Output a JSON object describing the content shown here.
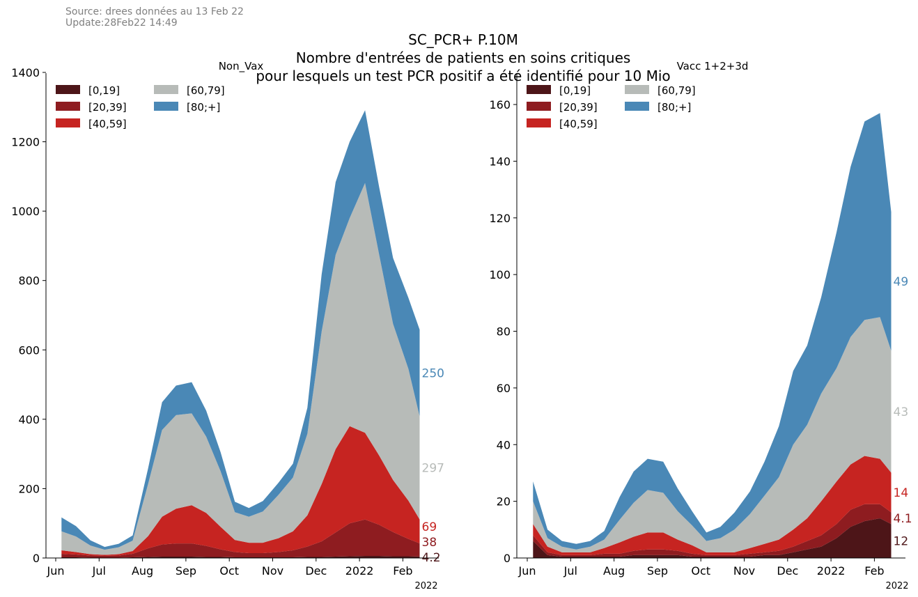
{
  "source": {
    "line1": "Source: drees données au 13 Feb 22",
    "line2": "Update:28Feb22 14:49"
  },
  "title": {
    "line1": "SC_PCR+ P.10M",
    "line2": "Nombre d'entrées de patients en soins critiques",
    "line3": "pour lesquels un test PCR positif a été identifié pour 10 Mio"
  },
  "chart_data": [
    {
      "type": "area",
      "stacked": true,
      "title": "Non_Vax",
      "x_tick_labels": [
        "Jun",
        "Jul",
        "Aug",
        "Sep",
        "Oct",
        "Nov",
        "Dec",
        "2022",
        "Feb"
      ],
      "x_axis_year_label": "2022",
      "ylim": [
        0,
        1430
      ],
      "y_ticks": [
        0,
        200,
        400,
        600,
        800,
        1000,
        1200,
        1400
      ],
      "grid": false,
      "legend_position": "top-left",
      "x": [
        "2021-06-05",
        "2021-06-15",
        "2021-06-25",
        "2021-07-05",
        "2021-07-15",
        "2021-07-25",
        "2021-08-05",
        "2021-08-15",
        "2021-08-25",
        "2021-09-05",
        "2021-09-15",
        "2021-09-25",
        "2021-10-05",
        "2021-10-15",
        "2021-10-25",
        "2021-11-05",
        "2021-11-15",
        "2021-11-25",
        "2021-12-05",
        "2021-12-15",
        "2021-12-25",
        "2022-01-05",
        "2022-01-15",
        "2022-01-25",
        "2022-02-05",
        "2022-02-13"
      ],
      "series": [
        {
          "name": "[0,19]",
          "color": "#4d1518",
          "end_label": "4.2",
          "values": [
            2,
            2,
            1,
            1,
            1,
            2,
            3,
            4,
            4,
            4,
            3,
            3,
            2,
            2,
            2,
            2,
            2,
            3,
            3,
            4,
            5,
            6,
            6,
            5,
            5,
            4.2
          ]
        },
        {
          "name": "[20,39]",
          "color": "#8e1c20",
          "end_label": "38",
          "values": [
            10,
            8,
            6,
            5,
            6,
            10,
            25,
            35,
            38,
            38,
            32,
            22,
            15,
            12,
            12,
            15,
            20,
            30,
            45,
            70,
            95,
            105,
            90,
            70,
            50,
            38
          ]
        },
        {
          "name": "[40,59]",
          "color": "#c62421",
          "end_label": "69",
          "values": [
            10,
            7,
            4,
            3,
            4,
            8,
            35,
            80,
            100,
            110,
            95,
            65,
            35,
            30,
            30,
            40,
            55,
            90,
            165,
            240,
            280,
            250,
            200,
            150,
            110,
            69
          ]
        },
        {
          "name": "[60,79]",
          "color": "#b7bbb8",
          "end_label": "297",
          "values": [
            55,
            45,
            25,
            15,
            20,
            30,
            150,
            250,
            270,
            265,
            220,
            160,
            80,
            75,
            90,
            125,
            155,
            235,
            440,
            560,
            600,
            720,
            580,
            450,
            380,
            297
          ]
        },
        {
          "name": "[80;+]",
          "color": "#4a88b6",
          "end_label": "250",
          "values": [
            40,
            30,
            15,
            8,
            10,
            15,
            45,
            80,
            85,
            90,
            75,
            55,
            30,
            25,
            30,
            35,
            40,
            75,
            165,
            210,
            220,
            210,
            195,
            190,
            205,
            250
          ]
        }
      ]
    },
    {
      "type": "area",
      "stacked": true,
      "title": "Vacc 1+2+3d",
      "x_tick_labels": [
        "Jun",
        "Jul",
        "Aug",
        "Sep",
        "Oct",
        "Nov",
        "Dec",
        "2022",
        "Feb"
      ],
      "x_axis_year_label": "2022",
      "ylim": [
        0,
        175
      ],
      "y_ticks": [
        0,
        20,
        40,
        60,
        80,
        100,
        120,
        140,
        160
      ],
      "grid": false,
      "legend_position": "top-left",
      "x": [
        "2021-06-05",
        "2021-06-15",
        "2021-06-25",
        "2021-07-05",
        "2021-07-15",
        "2021-07-25",
        "2021-08-05",
        "2021-08-15",
        "2021-08-25",
        "2021-09-05",
        "2021-09-15",
        "2021-09-25",
        "2021-10-05",
        "2021-10-15",
        "2021-10-25",
        "2021-11-05",
        "2021-11-15",
        "2021-11-25",
        "2021-12-05",
        "2021-12-15",
        "2021-12-25",
        "2022-01-05",
        "2022-01-15",
        "2022-01-25",
        "2022-02-05",
        "2022-02-13"
      ],
      "series": [
        {
          "name": "[0,19]",
          "color": "#4d1518",
          "end_label": "12",
          "values": [
            6,
            1,
            0.5,
            0.5,
            0.5,
            0.5,
            0.5,
            1,
            1,
            1,
            1,
            0.5,
            0.5,
            0.5,
            0.5,
            0.5,
            1,
            1,
            2,
            3,
            4,
            7,
            11,
            13,
            14,
            12
          ]
        },
        {
          "name": "[20,39]",
          "color": "#8e1c20",
          "end_label": "4.1",
          "values": [
            2,
            1,
            0.5,
            0.5,
            0.5,
            1,
            1,
            1.5,
            2,
            2,
            1.5,
            1,
            0.5,
            0.5,
            0.5,
            1,
            1,
            1.5,
            2,
            3,
            4,
            5,
            6,
            6,
            5,
            4.1
          ]
        },
        {
          "name": "[40,59]",
          "color": "#c62421",
          "end_label": "14",
          "values": [
            4,
            2,
            1,
            1,
            1,
            2,
            4,
            5,
            6,
            6,
            4,
            3,
            1,
            1,
            1,
            2,
            3,
            4,
            6,
            8,
            12,
            15,
            16,
            17,
            16,
            14
          ]
        },
        {
          "name": "[60,79]",
          "color": "#b7bbb8",
          "end_label": "43",
          "values": [
            8,
            3,
            2,
            1,
            2,
            3,
            8,
            12,
            15,
            14,
            10,
            7,
            4,
            5,
            8,
            12,
            17,
            22,
            30,
            33,
            38,
            40,
            45,
            48,
            50,
            43
          ]
        },
        {
          "name": "[80;+]",
          "color": "#4a88b6",
          "end_label": "49",
          "values": [
            7,
            3,
            2,
            2,
            2,
            3,
            8,
            11,
            11,
            11,
            8,
            5,
            3,
            4,
            6,
            8,
            12,
            18,
            26,
            28,
            34,
            48,
            60,
            70,
            72,
            49
          ]
        }
      ]
    }
  ]
}
